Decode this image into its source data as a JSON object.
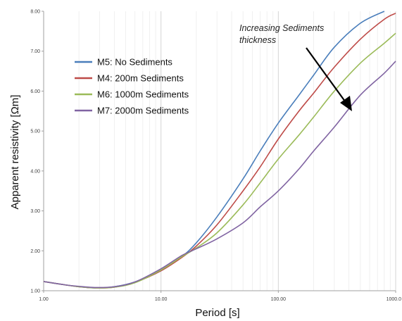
{
  "chart_data": {
    "type": "line",
    "title": "",
    "xlabel": "Period [s]",
    "ylabel": "Apparent resistivity [Ωm]",
    "xscale": "log",
    "xlim": [
      1,
      1000
    ],
    "ylim": [
      1,
      8
    ],
    "x_ticks": [
      1,
      10,
      100,
      1000
    ],
    "x_tick_labels": [
      "1.00",
      "10.00",
      "100.00",
      "1000.0"
    ],
    "y_ticks": [
      1,
      2,
      3,
      4,
      5,
      6,
      7,
      8
    ],
    "y_tick_labels": [
      "1.00",
      "2.00",
      "3.00",
      "4.00",
      "5.00",
      "6.00",
      "7.00",
      "8.00"
    ],
    "grid": {
      "vertical": true,
      "horizontal": false
    },
    "legend_position": "upper-left",
    "series": [
      {
        "name": "M5: No Sediments",
        "color": "#4a7ebb",
        "points": [
          [
            1,
            1.23
          ],
          [
            1.5,
            1.15
          ],
          [
            2,
            1.1
          ],
          [
            2.8,
            1.07
          ],
          [
            4,
            1.1
          ],
          [
            6,
            1.22
          ],
          [
            10,
            1.5
          ],
          [
            15,
            1.85
          ],
          [
            20,
            2.2
          ],
          [
            30,
            2.85
          ],
          [
            50,
            3.8
          ],
          [
            70,
            4.5
          ],
          [
            100,
            5.2
          ],
          [
            150,
            5.9
          ],
          [
            200,
            6.4
          ],
          [
            300,
            7.1
          ],
          [
            500,
            7.7
          ],
          [
            800,
            8
          ]
        ]
      },
      {
        "name": "M4: 200m Sediments",
        "color": "#be4b48",
        "points": [
          [
            1,
            1.23
          ],
          [
            1.5,
            1.15
          ],
          [
            2,
            1.1
          ],
          [
            2.8,
            1.07
          ],
          [
            4,
            1.09
          ],
          [
            6,
            1.21
          ],
          [
            10,
            1.5
          ],
          [
            15,
            1.83
          ],
          [
            20,
            2.12
          ],
          [
            30,
            2.65
          ],
          [
            50,
            3.5
          ],
          [
            70,
            4.1
          ],
          [
            100,
            4.8
          ],
          [
            150,
            5.5
          ],
          [
            200,
            5.95
          ],
          [
            300,
            6.6
          ],
          [
            500,
            7.3
          ],
          [
            800,
            7.8
          ],
          [
            1000,
            7.95
          ]
        ]
      },
      {
        "name": "M6: 1000m Sediments",
        "color": "#9bbb59",
        "points": [
          [
            1,
            1.23
          ],
          [
            1.5,
            1.15
          ],
          [
            2,
            1.1
          ],
          [
            2.8,
            1.07
          ],
          [
            4,
            1.09
          ],
          [
            6,
            1.2
          ],
          [
            10,
            1.52
          ],
          [
            15,
            1.85
          ],
          [
            20,
            2.07
          ],
          [
            30,
            2.45
          ],
          [
            50,
            3.15
          ],
          [
            70,
            3.7
          ],
          [
            100,
            4.3
          ],
          [
            150,
            4.9
          ],
          [
            200,
            5.35
          ],
          [
            300,
            6
          ],
          [
            500,
            6.7
          ],
          [
            800,
            7.2
          ],
          [
            1000,
            7.45
          ]
        ]
      },
      {
        "name": "M7: 2000m Sediments",
        "color": "#8064a2",
        "points": [
          [
            1,
            1.23
          ],
          [
            1.5,
            1.15
          ],
          [
            2,
            1.11
          ],
          [
            2.8,
            1.08
          ],
          [
            4,
            1.1
          ],
          [
            6,
            1.22
          ],
          [
            10,
            1.55
          ],
          [
            15,
            1.88
          ],
          [
            20,
            2.05
          ],
          [
            30,
            2.3
          ],
          [
            50,
            2.7
          ],
          [
            70,
            3.1
          ],
          [
            100,
            3.5
          ],
          [
            150,
            4.05
          ],
          [
            200,
            4.5
          ],
          [
            300,
            5.1
          ],
          [
            500,
            5.9
          ],
          [
            800,
            6.45
          ],
          [
            1000,
            6.75
          ]
        ]
      }
    ],
    "annotation": {
      "text_line1": "Increasing Sediments",
      "text_line2": "thickness"
    }
  }
}
